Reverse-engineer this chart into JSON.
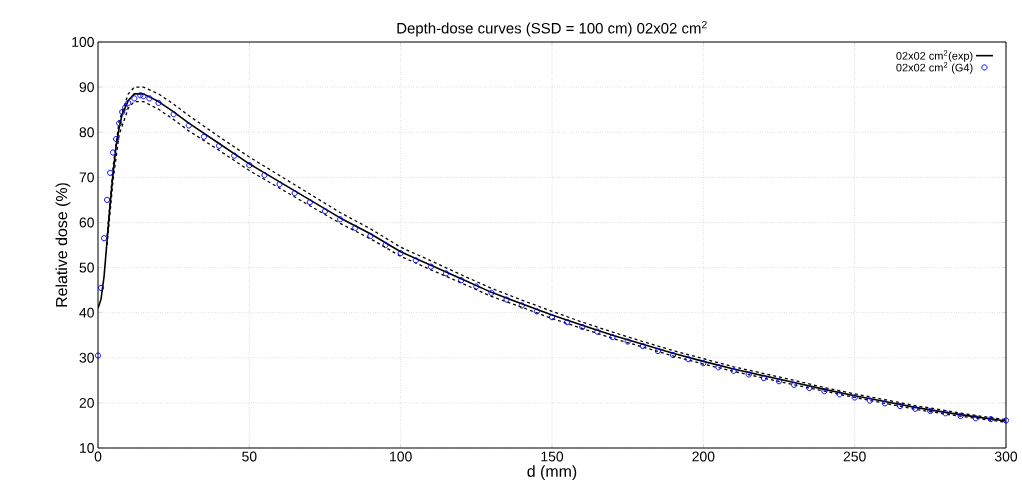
{
  "chart_data": {
    "type": "line",
    "title": "Depth-dose curves (SSD = 100 cm) 02x02 cm$^{2}$",
    "xlabel": "d (mm)",
    "ylabel": "Relative dose (%)",
    "xlim": [
      0,
      300
    ],
    "xticks": [
      0,
      50,
      100,
      150,
      200,
      250,
      300
    ],
    "ylim": [
      10,
      100
    ],
    "yticks": [
      10,
      20,
      30,
      40,
      50,
      60,
      70,
      80,
      90,
      100
    ],
    "grid": true,
    "legend": "top right",
    "series": [
      {
        "name": "02x02 cm$^{2}$(exp)",
        "color": "#000000",
        "marker": "none",
        "line_style": "solid",
        "x": [
          0,
          1,
          2,
          3,
          4,
          5,
          6,
          7,
          8,
          10,
          12,
          15,
          20,
          25,
          30,
          40,
          50,
          60,
          70,
          80,
          90,
          100,
          110,
          120,
          130,
          140,
          150,
          160,
          170,
          180,
          190,
          200,
          210,
          220,
          230,
          240,
          250,
          260,
          270,
          280,
          290,
          300
        ],
        "values": [
          41,
          43,
          48,
          56,
          64,
          71,
          77,
          81,
          84,
          87,
          88.5,
          88.5,
          86.8,
          84.5,
          82,
          77.5,
          73,
          69,
          65,
          61,
          57.5,
          53.5,
          50.5,
          47.5,
          44.5,
          42,
          39.5,
          37.2,
          35,
          33,
          31,
          29.2,
          27.5,
          26,
          24.5,
          23,
          21.6,
          20.3,
          19,
          17.9,
          16.9,
          16
        ]
      },
      {
        "color": "#000000",
        "marker": "none",
        "line_style": "dashed",
        "x": [
          3,
          5,
          7,
          10,
          12,
          15,
          20,
          25,
          30,
          40,
          50,
          60,
          70,
          80,
          90,
          100,
          110,
          120,
          130,
          140,
          150,
          160,
          170,
          180,
          190,
          200,
          210,
          220,
          230,
          240,
          250,
          260,
          270,
          280,
          290,
          300
        ],
        "values": [
          57,
          72.5,
          82.5,
          88.5,
          90,
          90,
          88.5,
          86.2,
          83.7,
          79,
          74.5,
          70.4,
          66.3,
          62.2,
          58.6,
          54.5,
          51.5,
          48.4,
          45.4,
          42.8,
          40.3,
          37.9,
          35.7,
          33.6,
          31.6,
          29.8,
          28,
          26.5,
          25,
          23.4,
          22,
          20.7,
          19.4,
          18.3,
          17.2,
          16.3
        ]
      },
      {
        "color": "#000000",
        "marker": "none",
        "line_style": "dashed",
        "x": [
          3,
          5,
          7,
          10,
          12,
          15,
          20,
          25,
          30,
          40,
          50,
          60,
          70,
          80,
          90,
          100,
          110,
          120,
          130,
          140,
          150,
          160,
          170,
          180,
          190,
          200,
          210,
          220,
          230,
          240,
          250,
          260,
          270,
          280,
          290,
          300
        ],
        "values": [
          55,
          69.5,
          79.5,
          85.3,
          86.8,
          86.8,
          85.1,
          82.8,
          80.3,
          76,
          71.5,
          67.6,
          63.7,
          59.8,
          56.4,
          52.5,
          49.5,
          46.6,
          43.6,
          41.2,
          38.7,
          36.5,
          34.3,
          32.4,
          30.4,
          28.6,
          27,
          25.5,
          24,
          22.6,
          21.2,
          19.9,
          18.6,
          17.5,
          16.6,
          15.7
        ]
      },
      {
        "name": "02x02 cm$^{2}$ (G4)",
        "type": "scatter",
        "color": "#0000ff",
        "marker": "circle",
        "x": [
          0,
          1,
          2,
          3,
          4,
          5,
          6,
          7,
          8,
          9,
          10,
          12,
          14,
          15,
          17,
          20,
          25,
          30,
          35,
          40,
          45,
          50,
          55,
          60,
          65,
          70,
          75,
          80,
          85,
          90,
          95,
          100,
          105,
          110,
          115,
          120,
          125,
          130,
          135,
          140,
          145,
          150,
          155,
          160,
          165,
          170,
          175,
          180,
          185,
          190,
          195,
          200,
          205,
          210,
          215,
          220,
          225,
          230,
          235,
          240,
          245,
          250,
          255,
          260,
          265,
          270,
          275,
          280,
          285,
          290,
          295,
          300
        ],
        "values": [
          30.5,
          45.5,
          56.5,
          65,
          71,
          75.5,
          78.5,
          82,
          84.5,
          85.5,
          86.5,
          87.5,
          88.2,
          88,
          87.5,
          86.5,
          84,
          81.5,
          79,
          77,
          74.8,
          72.7,
          70.5,
          68.5,
          66.5,
          64.5,
          62.5,
          60.7,
          58.8,
          57,
          55,
          53.2,
          51.6,
          50.2,
          48.7,
          47.2,
          45.8,
          44.4,
          42.9,
          41.6,
          40.3,
          39,
          37.9,
          36.8,
          35.8,
          34.6,
          33.6,
          32.6,
          31.5,
          30.6,
          29.7,
          28.8,
          27.9,
          27.1,
          26.3,
          25.5,
          24.8,
          24,
          23.3,
          22.6,
          21.9,
          21.2,
          20.5,
          19.9,
          19.3,
          18.7,
          18.2,
          17.7,
          17.1,
          16.6,
          16.4,
          16.1
        ]
      }
    ]
  }
}
